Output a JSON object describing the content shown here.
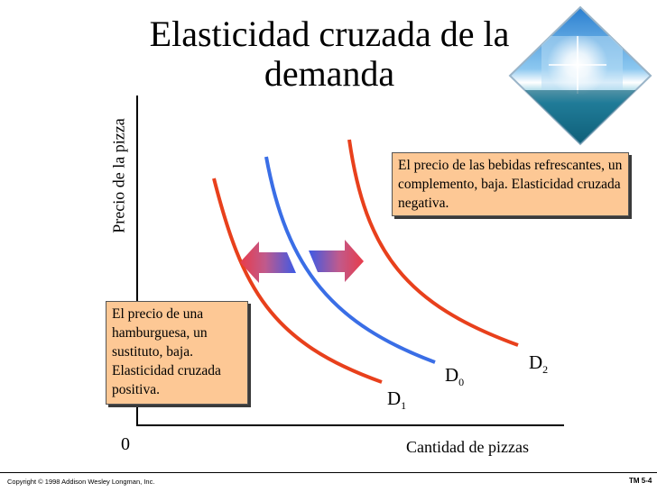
{
  "slide": {
    "title": "Elasticidad cruzada de la demanda",
    "footer_copyright": "Copyright © 1998 Addison Wesley Longman, Inc.",
    "footer_code": "TM 5-4"
  },
  "diagram": {
    "y_axis_label": "Precio de la pizza",
    "x_axis_label": "Cantidad de pizzas",
    "origin_label": "0",
    "curves": [
      {
        "name": "D",
        "sub": "0",
        "color": "#3a6ee6"
      },
      {
        "name": "D",
        "sub": "1",
        "color": "#e8401c"
      },
      {
        "name": "D",
        "sub": "2",
        "color": "#e8401c"
      }
    ],
    "note_complement": "El precio de las bebidas refrescantes, un complemento, baja. Elasticidad cruzada negativa.",
    "note_substitute": "El precio de una hamburguesa, un sustituto, baja. Elasticidad cruzada positiva.",
    "box_color": "#fdc895",
    "arrow_colors": [
      "#e83c4a",
      "#3c5ae6"
    ]
  }
}
